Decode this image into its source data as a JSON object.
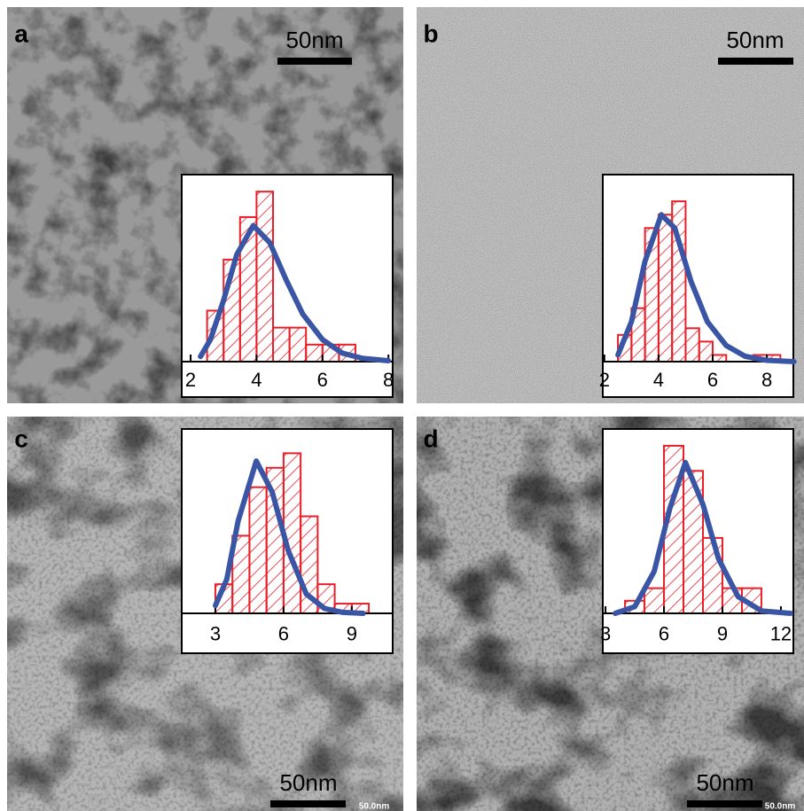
{
  "panels": [
    {
      "label": "a",
      "scale_bar": "50nm"
    },
    {
      "label": "b",
      "scale_bar": "50nm"
    },
    {
      "label": "c",
      "scale_bar": "50nm",
      "scale_marker": "50.0nm"
    },
    {
      "label": "d",
      "scale_bar": "50nm",
      "scale_marker": "50.0nm"
    }
  ],
  "chart_data": [
    {
      "type": "histogram",
      "color": "#e8202a",
      "bins": [
        2.5,
        3,
        3.5,
        4,
        4.5,
        5,
        5.5,
        6,
        6.5,
        7
      ],
      "values": [
        3,
        6,
        8.5,
        10,
        2,
        2,
        1,
        1,
        1
      ],
      "curve": {
        "color": "#3a55a4",
        "x": [
          2.3,
          2.6,
          3,
          3.4,
          3.9,
          4.4,
          4.9,
          5.4,
          6,
          6.6,
          7.2,
          8
        ],
        "values": [
          0.3,
          1.3,
          3.6,
          6.3,
          8,
          7,
          4.8,
          2.8,
          1.3,
          0.5,
          0.2,
          0.05
        ]
      },
      "xlim": [
        1.73,
        8.13
      ],
      "xticks": [
        2,
        4,
        6,
        8
      ],
      "ylim": [
        0,
        11
      ]
    },
    {
      "type": "histogram",
      "color": "#e8202a",
      "bins": [
        2.5,
        3,
        3.5,
        4,
        4.5,
        5,
        5.5,
        6,
        6.5,
        7,
        7.5,
        8,
        8.5
      ],
      "values": [
        2,
        4,
        10,
        11,
        12,
        2.5,
        1.5,
        0.5,
        0,
        0,
        0.5,
        0.5
      ],
      "curve": {
        "color": "#3a55a4",
        "x": [
          2.5,
          3,
          3.5,
          4.1,
          4.6,
          5.2,
          5.8,
          6.5,
          7.2,
          8,
          9
        ],
        "values": [
          0.5,
          3,
          7.5,
          11,
          10,
          6,
          3,
          1.2,
          0.4,
          0.1,
          0
        ]
      },
      "xlim": [
        1.94,
        8.98
      ],
      "xticks": [
        2,
        4,
        6,
        8
      ],
      "ylim": [
        0,
        14
      ]
    },
    {
      "type": "histogram",
      "color": "#e8202a",
      "bins": [
        3,
        3.75,
        4.5,
        5.25,
        6,
        6.75,
        7.5,
        8.25,
        9,
        9.75
      ],
      "values": [
        3,
        8,
        13,
        15,
        16.5,
        10,
        3,
        1,
        1
      ],
      "curve": {
        "color": "#3a55a4",
        "x": [
          3,
          3.5,
          4,
          4.8,
          5.5,
          6.2,
          7,
          7.8,
          8.6,
          9.5
        ],
        "values": [
          0.8,
          3.5,
          9.5,
          15.7,
          12.5,
          6.5,
          2,
          0.5,
          0.1,
          0
        ]
      },
      "xlim": [
        1.52,
        10.8
      ],
      "xticks": [
        3,
        6,
        9
      ],
      "ylim": [
        0,
        19
      ]
    },
    {
      "type": "histogram",
      "color": "#e8202a",
      "bins": [
        4,
        5,
        6,
        7,
        8,
        9,
        10,
        11
      ],
      "values": [
        1.5,
        3,
        20,
        17,
        9,
        3,
        3
      ],
      "curve": {
        "color": "#3a55a4",
        "x": [
          3.5,
          4.5,
          5.5,
          6.3,
          7.1,
          8,
          8.8,
          9.8,
          11,
          12.5
        ],
        "values": [
          0,
          0.8,
          5,
          12.5,
          18,
          13,
          6.5,
          2,
          0.3,
          0
        ]
      },
      "xlim": [
        2.86,
        12.64
      ],
      "xticks": [
        3,
        6,
        9,
        12
      ],
      "ylim": [
        0,
        22
      ]
    }
  ]
}
